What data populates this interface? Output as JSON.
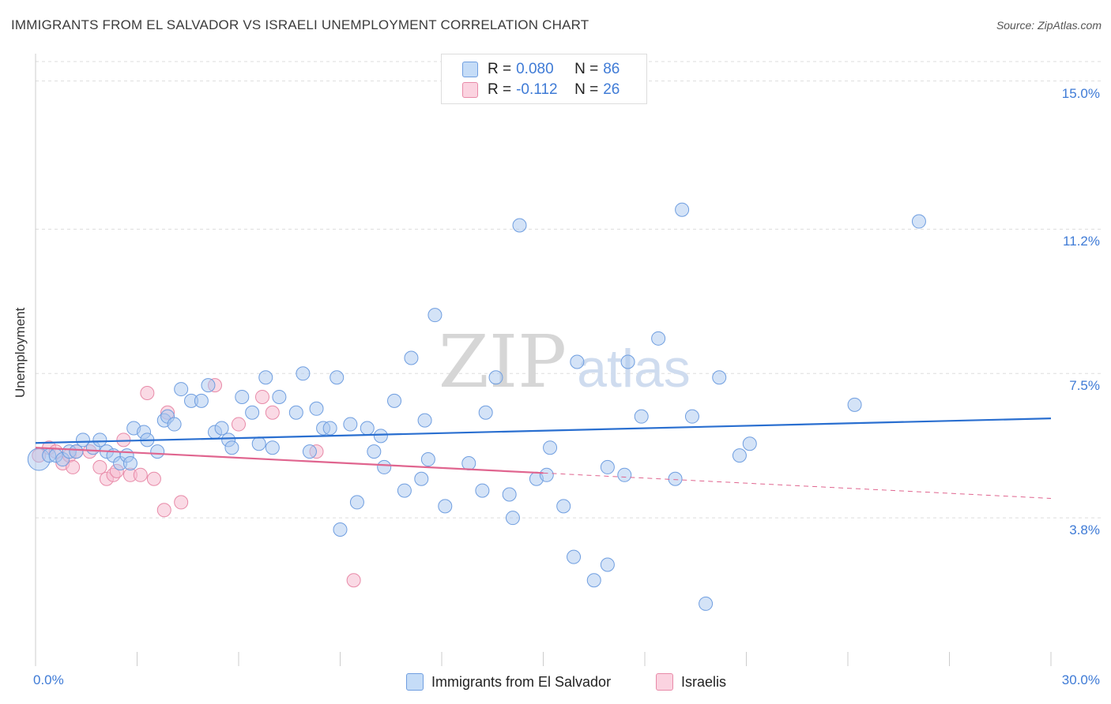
{
  "header": {
    "title": "IMMIGRANTS FROM EL SALVADOR VS ISRAELI UNEMPLOYMENT CORRELATION CHART",
    "source": "Source: ZipAtlas.com"
  },
  "watermark": {
    "zip": "ZIP",
    "atlas": "atlas"
  },
  "legend_top": {
    "rows": [
      {
        "r_label": "R =",
        "r_value": "0.080",
        "n_label": "N =",
        "n_value": "86"
      },
      {
        "r_label": "R =",
        "r_value": "-0.112",
        "n_label": "N =",
        "n_value": "26"
      }
    ]
  },
  "legend_bottom": {
    "items": [
      {
        "label": "Immigrants from El Salvador"
      },
      {
        "label": "Israelis"
      }
    ]
  },
  "colors": {
    "blue_fill": "#aac8f0",
    "blue_stroke": "#6f9ee0",
    "blue_line": "#2a6fd0",
    "pink_fill": "#f6bcd0",
    "pink_stroke": "#e88aa8",
    "pink_line": "#e0658f",
    "grid": "#dddddd",
    "tick_text": "#3f7bd6"
  },
  "chart_data": {
    "type": "scatter",
    "title": "IMMIGRANTS FROM EL SALVADOR VS ISRAELI UNEMPLOYMENT CORRELATION CHART",
    "ylabel": "Unemployment",
    "xlabel": "",
    "xlim": [
      0,
      30
    ],
    "ylim": [
      0,
      15.7
    ],
    "x_tick_labels": [
      "0.0%",
      "30.0%"
    ],
    "y_ticks": [
      3.8,
      7.5,
      11.2,
      15.0
    ],
    "y_tick_labels": [
      "3.8%",
      "7.5%",
      "11.2%",
      "15.0%"
    ],
    "grid": true,
    "legend_position": "top-center",
    "series": [
      {
        "name": "Immigrants from El Salvador",
        "r": 0.08,
        "n": 86,
        "trend": {
          "x": [
            0,
            30
          ],
          "y": [
            5.72,
            6.35
          ]
        },
        "points": [
          [
            0.1,
            5.3
          ],
          [
            0.4,
            5.4
          ],
          [
            0.6,
            5.4
          ],
          [
            0.8,
            5.3
          ],
          [
            1.0,
            5.5
          ],
          [
            1.2,
            5.5
          ],
          [
            1.4,
            5.8
          ],
          [
            1.7,
            5.6
          ],
          [
            1.9,
            5.8
          ],
          [
            2.1,
            5.5
          ],
          [
            2.3,
            5.4
          ],
          [
            2.5,
            5.2
          ],
          [
            2.7,
            5.4
          ],
          [
            2.8,
            5.2
          ],
          [
            2.9,
            6.1
          ],
          [
            3.2,
            6.0
          ],
          [
            3.3,
            5.8
          ],
          [
            3.6,
            5.5
          ],
          [
            3.8,
            6.3
          ],
          [
            3.9,
            6.4
          ],
          [
            4.1,
            6.2
          ],
          [
            4.3,
            7.1
          ],
          [
            4.6,
            6.8
          ],
          [
            4.9,
            6.8
          ],
          [
            5.1,
            7.2
          ],
          [
            5.3,
            6.0
          ],
          [
            5.5,
            6.1
          ],
          [
            5.7,
            5.8
          ],
          [
            5.8,
            5.6
          ],
          [
            6.1,
            6.9
          ],
          [
            6.4,
            6.5
          ],
          [
            6.6,
            5.7
          ],
          [
            6.8,
            7.4
          ],
          [
            7.0,
            5.6
          ],
          [
            7.2,
            6.9
          ],
          [
            7.7,
            6.5
          ],
          [
            7.9,
            7.5
          ],
          [
            8.1,
            5.5
          ],
          [
            8.3,
            6.6
          ],
          [
            8.5,
            6.1
          ],
          [
            8.7,
            6.1
          ],
          [
            8.9,
            7.4
          ],
          [
            9.0,
            3.5
          ],
          [
            9.3,
            6.2
          ],
          [
            9.5,
            4.2
          ],
          [
            9.8,
            6.1
          ],
          [
            10.0,
            5.5
          ],
          [
            10.2,
            5.9
          ],
          [
            10.3,
            5.1
          ],
          [
            10.6,
            6.8
          ],
          [
            10.9,
            4.5
          ],
          [
            11.1,
            7.9
          ],
          [
            11.4,
            4.8
          ],
          [
            11.5,
            6.3
          ],
          [
            11.6,
            5.3
          ],
          [
            11.8,
            9.0
          ],
          [
            12.1,
            4.1
          ],
          [
            12.8,
            5.2
          ],
          [
            13.2,
            4.5
          ],
          [
            13.3,
            6.5
          ],
          [
            13.6,
            7.4
          ],
          [
            14.0,
            4.4
          ],
          [
            14.1,
            3.8
          ],
          [
            14.3,
            11.3
          ],
          [
            14.8,
            4.8
          ],
          [
            15.1,
            4.9
          ],
          [
            15.2,
            5.6
          ],
          [
            15.6,
            4.1
          ],
          [
            15.9,
            2.8
          ],
          [
            16.0,
            7.8
          ],
          [
            16.5,
            2.2
          ],
          [
            16.9,
            2.6
          ],
          [
            16.9,
            5.1
          ],
          [
            17.4,
            4.9
          ],
          [
            17.5,
            7.8
          ],
          [
            17.9,
            6.4
          ],
          [
            18.4,
            8.4
          ],
          [
            18.9,
            4.8
          ],
          [
            19.1,
            11.7
          ],
          [
            19.4,
            6.4
          ],
          [
            19.8,
            1.6
          ],
          [
            20.2,
            7.4
          ],
          [
            20.8,
            5.4
          ],
          [
            21.1,
            5.7
          ],
          [
            24.2,
            6.7
          ],
          [
            26.1,
            11.4
          ]
        ]
      },
      {
        "name": "Israelis",
        "r": -0.112,
        "n": 26,
        "trend": {
          "x": [
            0,
            15
          ],
          "y": [
            5.6,
            4.95
          ]
        },
        "trend_extension": {
          "x": [
            15,
            30
          ],
          "y": [
            4.95,
            4.3
          ]
        },
        "points": [
          [
            0.1,
            5.4
          ],
          [
            0.4,
            5.6
          ],
          [
            0.6,
            5.5
          ],
          [
            0.8,
            5.2
          ],
          [
            1.0,
            5.4
          ],
          [
            1.1,
            5.1
          ],
          [
            1.2,
            5.5
          ],
          [
            1.6,
            5.5
          ],
          [
            1.9,
            5.1
          ],
          [
            2.1,
            4.8
          ],
          [
            2.3,
            4.9
          ],
          [
            2.4,
            5.0
          ],
          [
            2.6,
            5.8
          ],
          [
            2.8,
            4.9
          ],
          [
            3.1,
            4.9
          ],
          [
            3.3,
            7.0
          ],
          [
            3.5,
            4.8
          ],
          [
            3.8,
            4.0
          ],
          [
            3.9,
            6.5
          ],
          [
            4.3,
            4.2
          ],
          [
            5.3,
            7.2
          ],
          [
            6.0,
            6.2
          ],
          [
            6.7,
            6.9
          ],
          [
            7.0,
            6.5
          ],
          [
            8.3,
            5.5
          ],
          [
            9.4,
            2.2
          ]
        ]
      }
    ]
  }
}
